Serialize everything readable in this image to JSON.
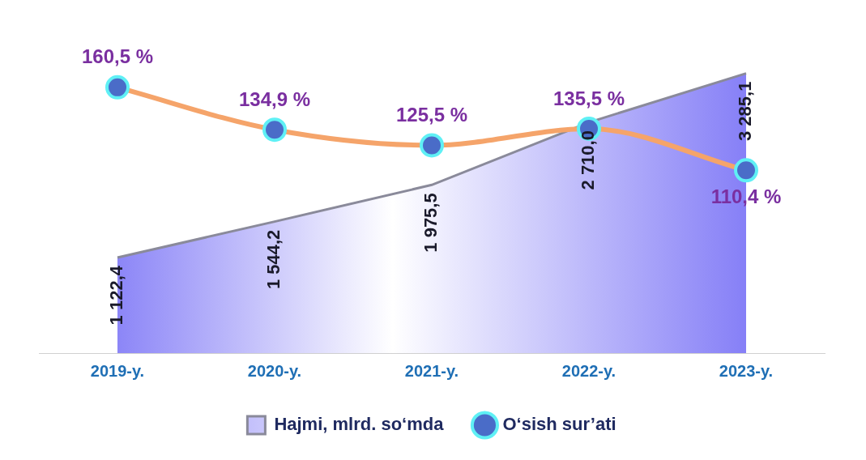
{
  "chart_data": {
    "type": "area",
    "categories": [
      "2019-y.",
      "2020-y.",
      "2021-y.",
      "2022-y.",
      "2023-y."
    ],
    "series": [
      {
        "name": "Hajmi, mlrd. so‘mda",
        "color": "#6b63f5",
        "values": [
          1122.4,
          1544.2,
          1975.5,
          2710.0,
          3285.1
        ],
        "value_labels": [
          "1 122,4",
          "1 544,2",
          "1 975,5",
          "2 710,0",
          "3 285,1"
        ]
      },
      {
        "name": "O‘sish sur’ati",
        "type": "line",
        "axis": "y2",
        "color": "#f5a46a",
        "marker": "circle",
        "values": [
          160.5,
          134.9,
          125.5,
          135.5,
          110.4
        ],
        "value_labels": [
          "160,5 %",
          "134,9 %",
          "125,5 %",
          "135,5 %",
          "110,4 %"
        ]
      }
    ],
    "legend": "bottom",
    "grid": false
  }
}
